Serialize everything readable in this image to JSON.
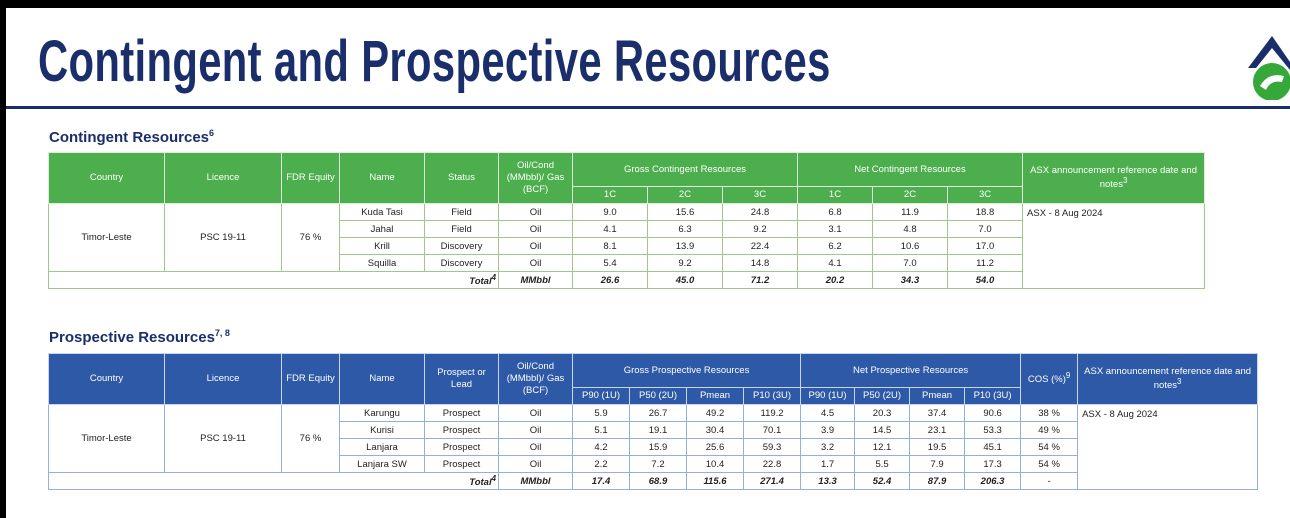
{
  "title": "Contingent and Prospective Resources",
  "contingent": {
    "heading": "Contingent Resources",
    "heading_sup": "6",
    "headers": {
      "country": "Country",
      "licence": "Licence",
      "equity": "FDR Equity",
      "name": "Name",
      "status": "Status",
      "unit": "Oil/Cond (MMbbl)/ Gas (BCF)",
      "gross": "Gross Contingent Resources",
      "net": "Net Contingent Resources",
      "asx": "ASX announcement reference date and notes",
      "asx_sup": "3",
      "sub": [
        "1C",
        "2C",
        "3C",
        "1C",
        "2C",
        "3C"
      ]
    },
    "country": "Timor-Leste",
    "licence": "PSC 19-11",
    "equity": "76 %",
    "asx_note": "ASX - 8 Aug 2024",
    "rows": [
      {
        "name": "Kuda Tasi",
        "status": "Field",
        "unit": "Oil",
        "vals": [
          "9.0",
          "15.6",
          "24.8",
          "6.8",
          "11.9",
          "18.8"
        ]
      },
      {
        "name": "Jahal",
        "status": "Field",
        "unit": "Oil",
        "vals": [
          "4.1",
          "6.3",
          "9.2",
          "3.1",
          "4.8",
          "7.0"
        ]
      },
      {
        "name": "Krill",
        "status": "Discovery",
        "unit": "Oil",
        "vals": [
          "8.1",
          "13.9",
          "22.4",
          "6.2",
          "10.6",
          "17.0"
        ]
      },
      {
        "name": "Squilla",
        "status": "Discovery",
        "unit": "Oil",
        "vals": [
          "5.4",
          "9.2",
          "14.8",
          "4.1",
          "7.0",
          "11.2"
        ]
      }
    ],
    "total": {
      "label": "Total",
      "label_sup": "4",
      "unit": "MMbbl",
      "vals": [
        "26.6",
        "45.0",
        "71.2",
        "20.2",
        "34.3",
        "54.0"
      ]
    }
  },
  "prospective": {
    "heading": "Prospective Resources",
    "heading_sup": "7, 8",
    "headers": {
      "country": "Country",
      "licence": "Licence",
      "equity": "FDR Equity",
      "name": "Name",
      "status": "Prospect or Lead",
      "unit": "Oil/Cond (MMbbl)/ Gas (BCF)",
      "gross": "Gross Prospective Resources",
      "net": "Net Prospective Resources",
      "cos": "COS (%)",
      "cos_sup": "9",
      "asx": "ASX announcement reference date and notes",
      "asx_sup": "3",
      "sub": [
        "P90 (1U)",
        "P50 (2U)",
        "Pmean",
        "P10 (3U)",
        "P90 (1U)",
        "P50 (2U)",
        "Pmean",
        "P10 (3U)"
      ]
    },
    "country": "Timor-Leste",
    "licence": "PSC 19-11",
    "equity": "76 %",
    "asx_note": "ASX - 8 Aug 2024",
    "rows": [
      {
        "name": "Karungu",
        "status": "Prospect",
        "unit": "Oil",
        "vals": [
          "5.9",
          "26.7",
          "49.2",
          "119.2",
          "4.5",
          "20.3",
          "37.4",
          "90.6"
        ],
        "cos": "38 %"
      },
      {
        "name": "Kurisi",
        "status": "Prospect",
        "unit": "Oil",
        "vals": [
          "5.1",
          "19.1",
          "30.4",
          "70.1",
          "3.9",
          "14.5",
          "23.1",
          "53.3"
        ],
        "cos": "49 %"
      },
      {
        "name": "Lanjara",
        "status": "Prospect",
        "unit": "Oil",
        "vals": [
          "4.2",
          "15.9",
          "25.6",
          "59.3",
          "3.2",
          "12.1",
          "19.5",
          "45.1"
        ],
        "cos": "54 %"
      },
      {
        "name": "Lanjara SW",
        "status": "Prospect",
        "unit": "Oil",
        "vals": [
          "2.2",
          "7.2",
          "10.4",
          "22.8",
          "1.7",
          "5.5",
          "7.9",
          "17.3"
        ],
        "cos": "54 %"
      }
    ],
    "total": {
      "label": "Total",
      "label_sup": "4",
      "unit": "MMbbl",
      "vals": [
        "17.4",
        "68.9",
        "115.6",
        "271.4",
        "13.3",
        "52.4",
        "87.9",
        "206.3"
      ],
      "cos": "-"
    }
  },
  "colors": {
    "navy": "#1a2e6c",
    "green": "#4cae4c",
    "blue": "#2d59a6"
  }
}
